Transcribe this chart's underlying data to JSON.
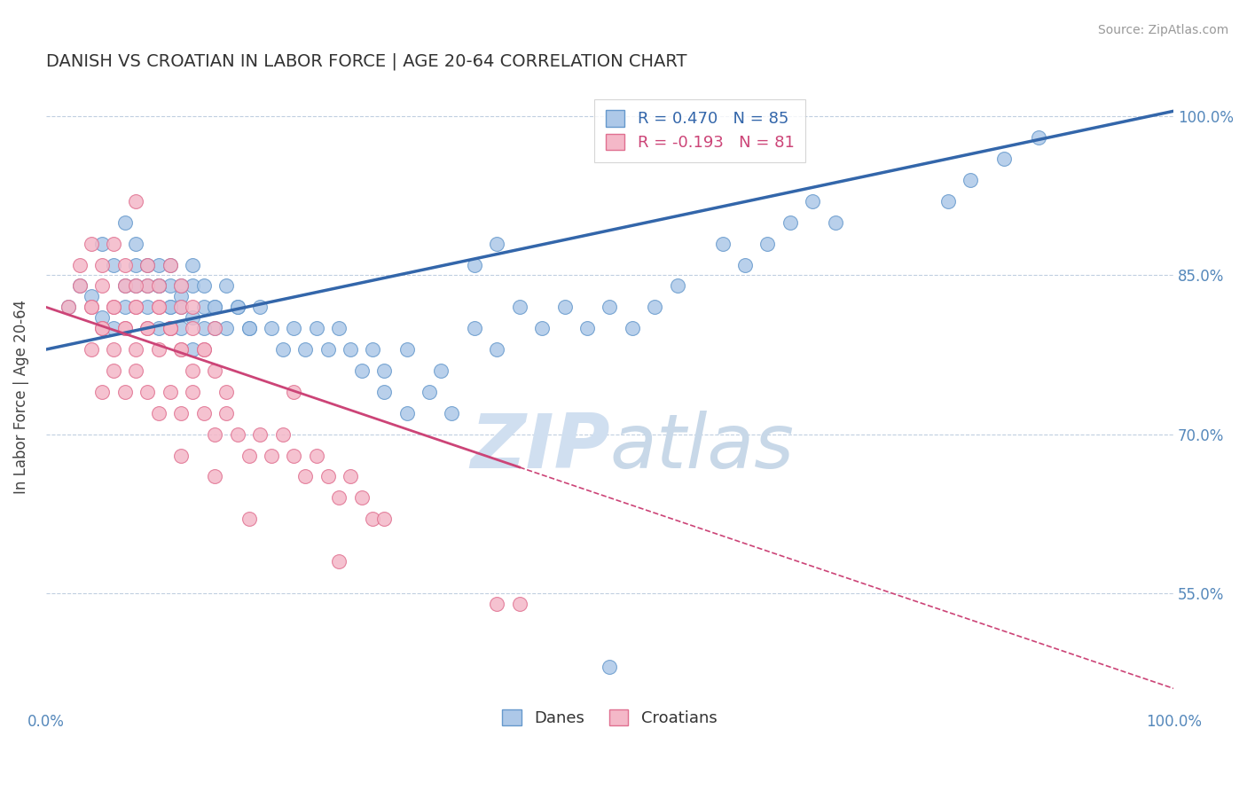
{
  "title": "DANISH VS CROATIAN IN LABOR FORCE | AGE 20-64 CORRELATION CHART",
  "source_text": "Source: ZipAtlas.com",
  "ylabel": "In Labor Force | Age 20-64",
  "xlim": [
    0.0,
    1.0
  ],
  "ylim": [
    0.44,
    1.03
  ],
  "yticks": [
    0.55,
    0.7,
    0.85,
    1.0
  ],
  "ytick_labels": [
    "55.0%",
    "70.0%",
    "85.0%",
    "100.0%"
  ],
  "xticks": [
    0.0,
    1.0
  ],
  "xtick_labels": [
    "0.0%",
    "100.0%"
  ],
  "blue_color": "#adc8e8",
  "blue_edge_color": "#6699cc",
  "pink_color": "#f4b8c8",
  "pink_edge_color": "#e07090",
  "trend_blue_color": "#3366aa",
  "trend_pink_color": "#cc4477",
  "label_color": "#5588bb",
  "background_color": "#ffffff",
  "watermark_color": "#d0dff0",
  "R_blue": 0.47,
  "N_blue": 85,
  "R_pink": -0.193,
  "N_pink": 81,
  "legend_label_blue": "Danes",
  "legend_label_pink": "Croatians",
  "trend_blue_x0": 0.0,
  "trend_blue_y0": 0.78,
  "trend_blue_x1": 1.0,
  "trend_blue_y1": 1.005,
  "trend_pink_x0": 0.0,
  "trend_pink_y0": 0.82,
  "trend_pink_x1": 1.0,
  "trend_pink_y1": 0.46,
  "blue_x": [
    0.02,
    0.03,
    0.04,
    0.05,
    0.06,
    0.07,
    0.08,
    0.09,
    0.1,
    0.11,
    0.12,
    0.13,
    0.05,
    0.06,
    0.07,
    0.08,
    0.09,
    0.1,
    0.11,
    0.12,
    0.13,
    0.14,
    0.15,
    0.07,
    0.08,
    0.09,
    0.1,
    0.11,
    0.12,
    0.13,
    0.14,
    0.15,
    0.16,
    0.17,
    0.18,
    0.1,
    0.11,
    0.12,
    0.13,
    0.14,
    0.15,
    0.16,
    0.17,
    0.18,
    0.19,
    0.2,
    0.21,
    0.22,
    0.23,
    0.24,
    0.25,
    0.26,
    0.27,
    0.28,
    0.29,
    0.3,
    0.32,
    0.35,
    0.38,
    0.4,
    0.42,
    0.44,
    0.46,
    0.48,
    0.5,
    0.52,
    0.54,
    0.56,
    0.38,
    0.4,
    0.3,
    0.32,
    0.34,
    0.36,
    0.6,
    0.62,
    0.64,
    0.66,
    0.68,
    0.7,
    0.8,
    0.82,
    0.85,
    0.88,
    0.5
  ],
  "blue_y": [
    0.82,
    0.84,
    0.83,
    0.81,
    0.8,
    0.82,
    0.84,
    0.82,
    0.8,
    0.82,
    0.83,
    0.81,
    0.88,
    0.86,
    0.84,
    0.86,
    0.84,
    0.86,
    0.84,
    0.82,
    0.84,
    0.82,
    0.8,
    0.9,
    0.88,
    0.86,
    0.84,
    0.86,
    0.84,
    0.86,
    0.84,
    0.82,
    0.84,
    0.82,
    0.8,
    0.84,
    0.82,
    0.8,
    0.78,
    0.8,
    0.82,
    0.8,
    0.82,
    0.8,
    0.82,
    0.8,
    0.78,
    0.8,
    0.78,
    0.8,
    0.78,
    0.8,
    0.78,
    0.76,
    0.78,
    0.76,
    0.78,
    0.76,
    0.8,
    0.78,
    0.82,
    0.8,
    0.82,
    0.8,
    0.82,
    0.8,
    0.82,
    0.84,
    0.86,
    0.88,
    0.74,
    0.72,
    0.74,
    0.72,
    0.88,
    0.86,
    0.88,
    0.9,
    0.92,
    0.9,
    0.92,
    0.94,
    0.96,
    0.98,
    0.48
  ],
  "pink_x": [
    0.02,
    0.03,
    0.04,
    0.05,
    0.06,
    0.07,
    0.08,
    0.09,
    0.1,
    0.11,
    0.12,
    0.03,
    0.04,
    0.05,
    0.06,
    0.07,
    0.08,
    0.09,
    0.1,
    0.11,
    0.12,
    0.13,
    0.04,
    0.05,
    0.06,
    0.07,
    0.08,
    0.09,
    0.1,
    0.11,
    0.12,
    0.13,
    0.14,
    0.15,
    0.04,
    0.05,
    0.06,
    0.07,
    0.08,
    0.09,
    0.1,
    0.11,
    0.12,
    0.13,
    0.14,
    0.15,
    0.16,
    0.05,
    0.06,
    0.07,
    0.08,
    0.09,
    0.1,
    0.11,
    0.12,
    0.13,
    0.14,
    0.15,
    0.16,
    0.17,
    0.18,
    0.19,
    0.2,
    0.21,
    0.22,
    0.23,
    0.24,
    0.25,
    0.26,
    0.27,
    0.28,
    0.29,
    0.08,
    0.12,
    0.15,
    0.18,
    0.22,
    0.26,
    0.3,
    0.4,
    0.42
  ],
  "pink_y": [
    0.82,
    0.84,
    0.82,
    0.84,
    0.82,
    0.84,
    0.82,
    0.84,
    0.82,
    0.8,
    0.82,
    0.86,
    0.88,
    0.86,
    0.88,
    0.86,
    0.84,
    0.86,
    0.84,
    0.86,
    0.84,
    0.82,
    0.82,
    0.8,
    0.82,
    0.8,
    0.82,
    0.8,
    0.82,
    0.8,
    0.78,
    0.8,
    0.78,
    0.8,
    0.78,
    0.8,
    0.78,
    0.8,
    0.78,
    0.8,
    0.78,
    0.8,
    0.78,
    0.76,
    0.78,
    0.76,
    0.74,
    0.74,
    0.76,
    0.74,
    0.76,
    0.74,
    0.72,
    0.74,
    0.72,
    0.74,
    0.72,
    0.7,
    0.72,
    0.7,
    0.68,
    0.7,
    0.68,
    0.7,
    0.68,
    0.66,
    0.68,
    0.66,
    0.64,
    0.66,
    0.64,
    0.62,
    0.92,
    0.68,
    0.66,
    0.62,
    0.74,
    0.58,
    0.62,
    0.54,
    0.54
  ]
}
